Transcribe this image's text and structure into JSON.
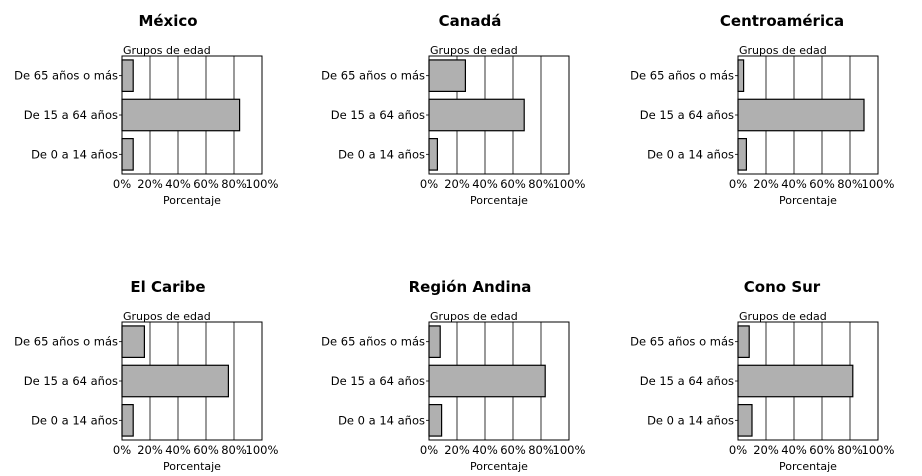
{
  "chart_data": [
    {
      "type": "bar",
      "orientation": "horizontal",
      "title": "México",
      "categories": [
        "De 65 años o más",
        "De 15 a 64 años",
        "De 0 a 14 años"
      ],
      "values": [
        8,
        84,
        8
      ],
      "xlabel": "Porcentaje",
      "ylabel": "Grupos de edad",
      "xlim": [
        0,
        100
      ],
      "xticks": [
        "0%",
        "20%",
        "40%",
        "60%",
        "80%",
        "100%"
      ],
      "grid": true,
      "bar_color": "#b0b0b0"
    },
    {
      "type": "bar",
      "orientation": "horizontal",
      "title": "Canadá",
      "categories": [
        "De 65 años o más",
        "De 15 a 64 años",
        "De 0 a 14 años"
      ],
      "values": [
        26,
        68,
        6
      ],
      "xlabel": "Porcentaje",
      "ylabel": "Grupos de edad",
      "xlim": [
        0,
        100
      ],
      "xticks": [
        "0%",
        "20%",
        "40%",
        "60%",
        "80%",
        "100%"
      ],
      "grid": true,
      "bar_color": "#b0b0b0"
    },
    {
      "type": "bar",
      "orientation": "horizontal",
      "title": "Centroamérica",
      "categories": [
        "De 65 años o más",
        "De 15 a 64 años",
        "De 0 a 14 años"
      ],
      "values": [
        4,
        90,
        6
      ],
      "xlabel": "Porcentaje",
      "ylabel": "Grupos de edad",
      "xlim": [
        0,
        100
      ],
      "xticks": [
        "0%",
        "20%",
        "40%",
        "60%",
        "80%",
        "100%"
      ],
      "grid": true,
      "bar_color": "#b0b0b0"
    },
    {
      "type": "bar",
      "orientation": "horizontal",
      "title": "El Caribe",
      "categories": [
        "De 65 años o más",
        "De 15 a 64 años",
        "De 0 a 14 años"
      ],
      "values": [
        16,
        76,
        8
      ],
      "xlabel": "Porcentaje",
      "ylabel": "Grupos de edad",
      "xlim": [
        0,
        100
      ],
      "xticks": [
        "0%",
        "20%",
        "40%",
        "60%",
        "80%",
        "100%"
      ],
      "grid": true,
      "bar_color": "#b0b0b0"
    },
    {
      "type": "bar",
      "orientation": "horizontal",
      "title": "Región Andina",
      "categories": [
        "De 65 años o más",
        "De 15 a 64 años",
        "De 0 a 14 años"
      ],
      "values": [
        8,
        83,
        9
      ],
      "xlabel": "Porcentaje",
      "ylabel": "Grupos de edad",
      "xlim": [
        0,
        100
      ],
      "xticks": [
        "0%",
        "20%",
        "40%",
        "60%",
        "80%",
        "100%"
      ],
      "grid": true,
      "bar_color": "#b0b0b0"
    },
    {
      "type": "bar",
      "orientation": "horizontal",
      "title": "Cono Sur",
      "categories": [
        "De 65 años o más",
        "De 15 a 64 años",
        "De 0 a 14 años"
      ],
      "values": [
        8,
        82,
        10
      ],
      "xlabel": "Porcentaje",
      "ylabel": "Grupos de edad",
      "xlim": [
        0,
        100
      ],
      "xticks": [
        "0%",
        "20%",
        "40%",
        "60%",
        "80%",
        "100%"
      ],
      "grid": true,
      "bar_color": "#b0b0b0"
    }
  ]
}
